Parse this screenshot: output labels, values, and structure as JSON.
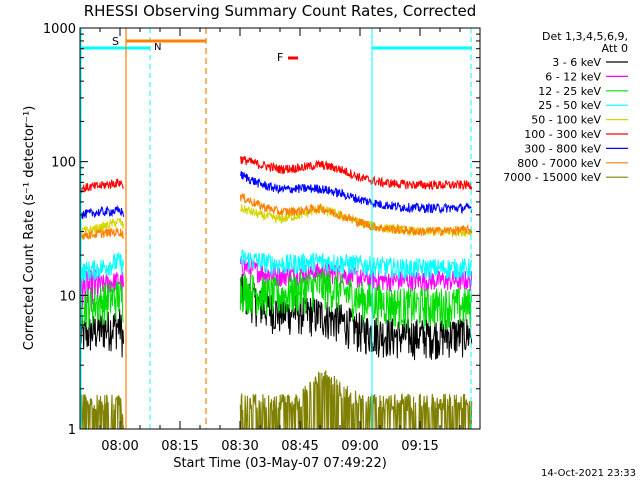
{
  "chart_data": {
    "type": "line",
    "title": "RHESSI Observing Summary Count Rates, Corrected",
    "xlabel": "Start Time (03-May-07 07:49:22)",
    "ylabel": "Corrected Count Rate (s⁻¹ detector⁻¹)",
    "x_units": "minutes",
    "x_range": [
      470,
      570
    ],
    "ylim": [
      1,
      1000
    ],
    "y_scale": "log",
    "x_tick_labels": [
      "08:00",
      "08:15",
      "08:30",
      "08:45",
      "09:00",
      "09:15"
    ],
    "x_tick_values": [
      480,
      495,
      510,
      525,
      540,
      555
    ],
    "y_tick_labels": [
      "1",
      "10",
      "100",
      "1000"
    ],
    "y_tick_values": [
      1,
      10,
      100,
      1000
    ],
    "footer_timestamp": "14-Oct-2021 23:33",
    "legend": {
      "header_line1": "Det 1,3,4,5,6,9,",
      "header_line2": "Att 0",
      "placement": "right"
    },
    "series": [
      {
        "name": "3 - 6 keV",
        "color": "#000000",
        "x": [
          470,
          475,
          480,
          481,
          505,
          510,
          515,
          520,
          525,
          530,
          535,
          540,
          545,
          550,
          555,
          568
        ],
        "y": [
          5,
          5.6,
          6,
          4.5,
          null,
          11,
          8.4,
          7.5,
          7.6,
          7.2,
          6.5,
          5.5,
          5.2,
          5.0,
          5.0,
          5.2
        ]
      },
      {
        "name": "6 - 12 keV",
        "color": "#ff00ff",
        "x": [
          470,
          475,
          480,
          481,
          505,
          510,
          515,
          520,
          525,
          530,
          535,
          540,
          545,
          550,
          555,
          568
        ],
        "y": [
          11,
          12,
          13,
          11,
          null,
          17,
          15,
          14,
          14.5,
          15,
          14.5,
          13.5,
          13,
          13,
          13,
          13
        ]
      },
      {
        "name": "12 - 25 keV",
        "color": "#00dd00",
        "x": [
          470,
          475,
          480,
          481,
          505,
          510,
          515,
          520,
          525,
          530,
          535,
          540,
          545,
          550,
          555,
          568
        ],
        "y": [
          8.5,
          9,
          10,
          9,
          null,
          11.5,
          10.5,
          10,
          11,
          12,
          11,
          9.5,
          9,
          8.5,
          8.5,
          8.5
        ]
      },
      {
        "name": "25 - 50 keV",
        "color": "#00ffff",
        "x": [
          470,
          475,
          480,
          481,
          505,
          510,
          515,
          520,
          525,
          530,
          535,
          540,
          545,
          550,
          555,
          568
        ],
        "y": [
          15,
          16,
          18,
          16,
          null,
          19,
          18,
          17,
          17.5,
          18,
          17.5,
          17,
          16.5,
          16,
          16,
          16
        ]
      },
      {
        "name": "50 - 100 keV",
        "color": "#d4d400",
        "x": [
          470,
          475,
          480,
          481,
          505,
          510,
          515,
          520,
          525,
          530,
          535,
          540,
          545,
          550,
          555,
          568
        ],
        "y": [
          30,
          32,
          36,
          32,
          null,
          45,
          40,
          37,
          40,
          44,
          40,
          35,
          32,
          31,
          30,
          30
        ]
      },
      {
        "name": "100 - 300 keV",
        "color": "#ff0000",
        "x": [
          470,
          475,
          480,
          481,
          505,
          510,
          515,
          520,
          525,
          530,
          535,
          540,
          545,
          550,
          555,
          568
        ],
        "y": [
          63,
          66,
          70,
          66,
          null,
          105,
          95,
          88,
          90,
          95,
          88,
          76,
          70,
          68,
          67,
          67
        ]
      },
      {
        "name": "300 - 800 keV",
        "color": "#0000ff",
        "x": [
          470,
          475,
          480,
          481,
          505,
          510,
          515,
          520,
          525,
          530,
          535,
          540,
          545,
          550,
          555,
          568
        ],
        "y": [
          40,
          42,
          43,
          41,
          null,
          80,
          68,
          62,
          63,
          63,
          58,
          52,
          48,
          46,
          45,
          45
        ]
      },
      {
        "name": "800 - 7000 keV",
        "color": "#ff8000",
        "x": [
          470,
          475,
          480,
          481,
          505,
          510,
          515,
          520,
          525,
          530,
          535,
          540,
          545,
          550,
          555,
          568
        ],
        "y": [
          28,
          29,
          30,
          28,
          null,
          55,
          47,
          42,
          43,
          45,
          40,
          35,
          32,
          31,
          30,
          31
        ]
      },
      {
        "name": "7000 - 15000 keV",
        "color": "#808000",
        "x": [
          470,
          475,
          480,
          481,
          505,
          510,
          515,
          520,
          525,
          530,
          535,
          540,
          545,
          550,
          555,
          568
        ],
        "y": [
          1.6,
          1.6,
          1.6,
          1.0,
          null,
          1.6,
          1.6,
          1.6,
          1.6,
          2.6,
          2.0,
          1.6,
          1.6,
          1.6,
          1.6,
          1.6
        ]
      }
    ],
    "annotations": {
      "saa": {
        "label": "S",
        "color": "#ff8000",
        "x_start": 481.5,
        "x_end": 501.5
      },
      "night": {
        "label": "N",
        "color": "#00ffff",
        "intervals": [
          [
            470,
            487.5
          ],
          [
            543,
            568
          ]
        ]
      },
      "flare": {
        "label": "F",
        "color": "#ff0000",
        "x_start": 522,
        "x_end": 524.5
      }
    }
  }
}
